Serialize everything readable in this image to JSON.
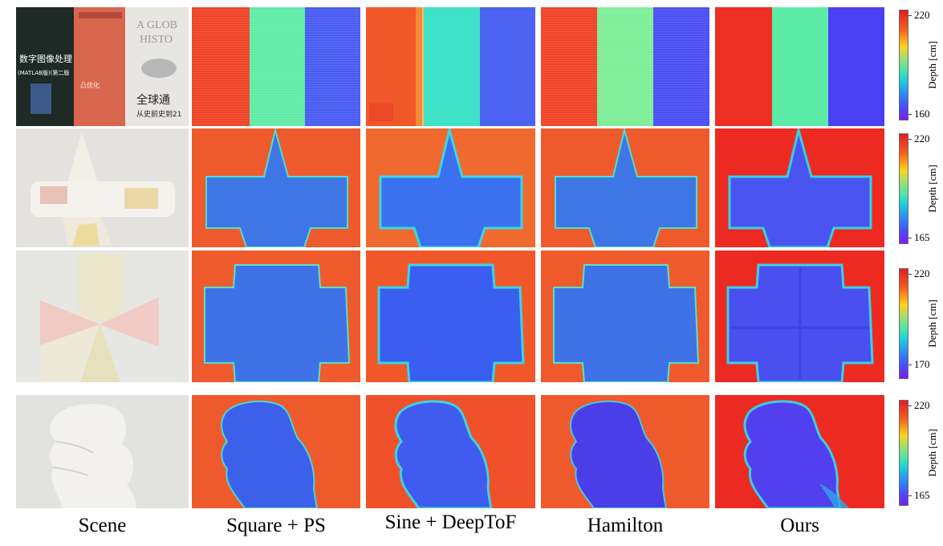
{
  "columns": [
    "Scene",
    "Square + PS",
    "Sine + DeepToF",
    "Hamilton",
    "Ours"
  ],
  "rows": [
    {
      "scene": "books",
      "cbar_max": "220",
      "cbar_min": "160",
      "cbar_label": "Depth [cm]"
    },
    {
      "scene": "cone-cross",
      "cbar_max": "220",
      "cbar_min": "165",
      "cbar_label": "Depth [cm]"
    },
    {
      "scene": "box-cross",
      "cbar_max": "220",
      "cbar_min": "170",
      "cbar_label": "Depth [cm]"
    },
    {
      "scene": "hand",
      "cbar_max": "220",
      "cbar_min": "165",
      "cbar_label": "Depth [cm]"
    }
  ],
  "book_covers": {
    "book1_title": "数字图像处理",
    "book1_sub": "(MATLAB版)(第二版",
    "book2_title": "凸优化",
    "book3_title": "A GLOB",
    "book3_title2": "HISTO",
    "book3_cn": "全球通",
    "book3_cn2": "从史前史到21"
  },
  "colors": {
    "far": "#ee3a24",
    "near": "#4c58f0",
    "mid_green": "#5cebae",
    "mid_teal": "#40dfc9"
  }
}
